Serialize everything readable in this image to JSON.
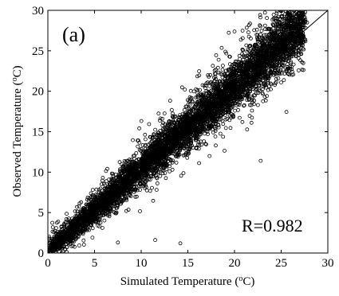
{
  "chart_data": {
    "type": "scatter",
    "panel_label": "(a)",
    "xlabel": {
      "main": "Simulated Temperature (",
      "sup": "o",
      "unit": "C)"
    },
    "ylabel": {
      "main": "Observed Temperature (",
      "sup": "o",
      "unit": "C)"
    },
    "xlim": [
      0,
      30
    ],
    "ylim": [
      0,
      30
    ],
    "xticks": [
      "0",
      "5",
      "10",
      "15",
      "20",
      "25",
      "30"
    ],
    "yticks": [
      "0",
      "5",
      "10",
      "15",
      "20",
      "25",
      "30"
    ],
    "annotation": "R=0.982",
    "reference_line": {
      "type": "1:1",
      "from": [
        0,
        0
      ],
      "to": [
        30,
        30
      ]
    },
    "grid": false,
    "marker": "open-circle",
    "series": [
      {
        "values_description": "dense cloud of observed vs simulated temperatures around the 1:1 line",
        "sample_points": [
          [
            0.5,
            0.4
          ],
          [
            1.2,
            1.5
          ],
          [
            2.3,
            2.0
          ],
          [
            3.0,
            3.2
          ],
          [
            4.1,
            3.9
          ],
          [
            5.2,
            5.5
          ],
          [
            6.0,
            6.4
          ],
          [
            7.1,
            7.3
          ],
          [
            8.0,
            8.6
          ],
          [
            9.2,
            9.4
          ],
          [
            10.1,
            10.5
          ],
          [
            11.3,
            11.6
          ],
          [
            12.0,
            12.8
          ],
          [
            13.2,
            13.9
          ],
          [
            14.1,
            14.6
          ],
          [
            15.0,
            15.8
          ],
          [
            16.2,
            16.9
          ],
          [
            17.1,
            17.8
          ],
          [
            18.0,
            18.9
          ],
          [
            19.2,
            19.6
          ],
          [
            20.1,
            20.7
          ],
          [
            21.0,
            21.5
          ],
          [
            22.2,
            22.4
          ],
          [
            23.1,
            23.4
          ],
          [
            24.0,
            24.5
          ],
          [
            25.1,
            25.6
          ],
          [
            26.0,
            26.8
          ],
          [
            27.0,
            28.0
          ],
          [
            22.8,
            11.4
          ],
          [
            14.2,
            1.2
          ],
          [
            11.5,
            1.6
          ],
          [
            7.5,
            1.3
          ]
        ]
      }
    ]
  }
}
